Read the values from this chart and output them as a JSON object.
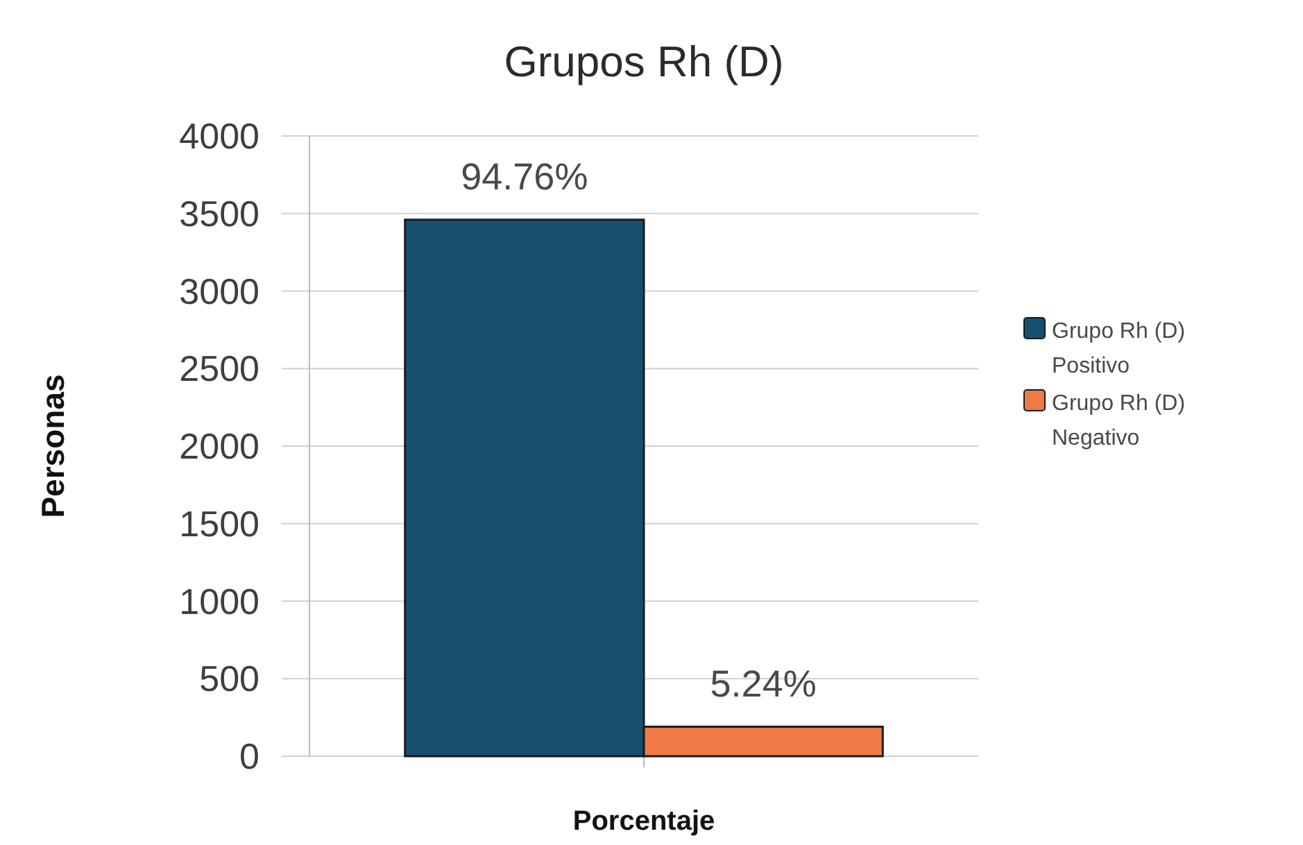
{
  "chart_data": {
    "type": "bar",
    "title": "Grupos Rh (D)",
    "xlabel": "Porcentaje",
    "ylabel": "Personas",
    "categories": [
      null
    ],
    "series": [
      {
        "name": "Grupo Rh (D) Positivo",
        "color": "#17506f",
        "values": [
          3460
        ]
      },
      {
        "name": "Grupo Rh (D) Negativo",
        "color": "#f07a45",
        "values": [
          190
        ]
      }
    ],
    "annotations": [
      {
        "text": "94.76%",
        "y": 3460
      },
      {
        "text": "5.24%",
        "y": 190
      }
    ],
    "ylim": [
      0,
      4000
    ],
    "yticks": [
      0,
      500,
      1000,
      1500,
      2000,
      2500,
      3000,
      3500,
      4000
    ],
    "grid": "y",
    "legend": "right"
  }
}
